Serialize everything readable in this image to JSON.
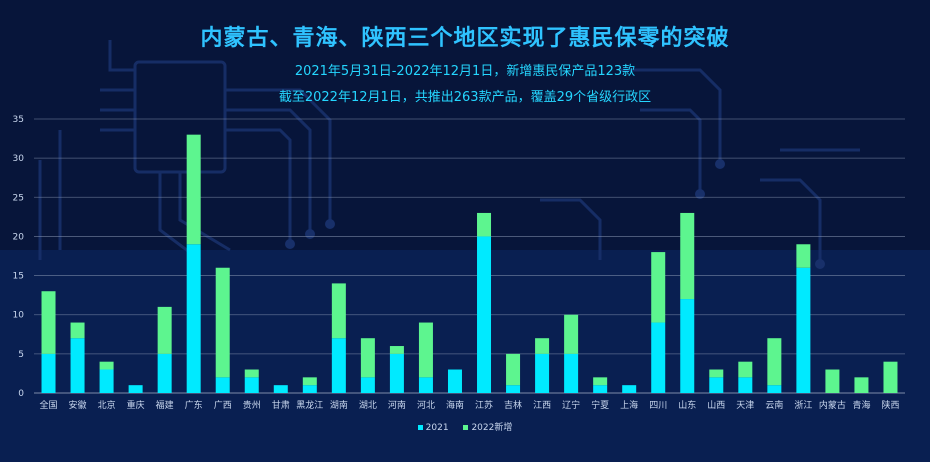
{
  "header": {
    "title": "内蒙古、青海、陕西三个地区实现了惠民保零的突破",
    "subtitle_1": "2021年5月31日-2022年12月1日，新增惠民保产品123款",
    "subtitle_2": "截至2022年12月1日，共推出263款产品，覆盖29个省级行政区"
  },
  "colors": {
    "series_2021": "#00eaff",
    "series_2022": "#5df58f",
    "grid": "#8a97b3",
    "axis_text": "#c9d7ee"
  },
  "chart_data": {
    "type": "bar",
    "stacked": true,
    "categories": [
      "全国",
      "安徽",
      "北京",
      "重庆",
      "福建",
      "广东",
      "广西",
      "贵州",
      "甘肃",
      "黑龙江",
      "湖南",
      "湖北",
      "河南",
      "河北",
      "海南",
      "江苏",
      "吉林",
      "江西",
      "辽宁",
      "宁夏",
      "上海",
      "四川",
      "山东",
      "山西",
      "天津",
      "云南",
      "浙江",
      "内蒙古",
      "青海",
      "陕西"
    ],
    "series": [
      {
        "name": "2021",
        "values": [
          5,
          7,
          3,
          1,
          5,
          19,
          2,
          2,
          1,
          1,
          7,
          2,
          5,
          2,
          3,
          20,
          1,
          5,
          5,
          1,
          1,
          9,
          12,
          2,
          2,
          1,
          16,
          0,
          0,
          0
        ]
      },
      {
        "name": "2022新增",
        "values": [
          8,
          2,
          1,
          0,
          6,
          14,
          14,
          1,
          0,
          1,
          7,
          5,
          1,
          7,
          0,
          3,
          4,
          2,
          5,
          1,
          0,
          9,
          11,
          1,
          2,
          6,
          3,
          3,
          2,
          4
        ]
      }
    ],
    "ylim": [
      0,
      35
    ],
    "yticks": [
      0,
      5,
      10,
      15,
      20,
      25,
      30,
      35
    ],
    "grid": true,
    "legend_position": "bottom-center"
  }
}
